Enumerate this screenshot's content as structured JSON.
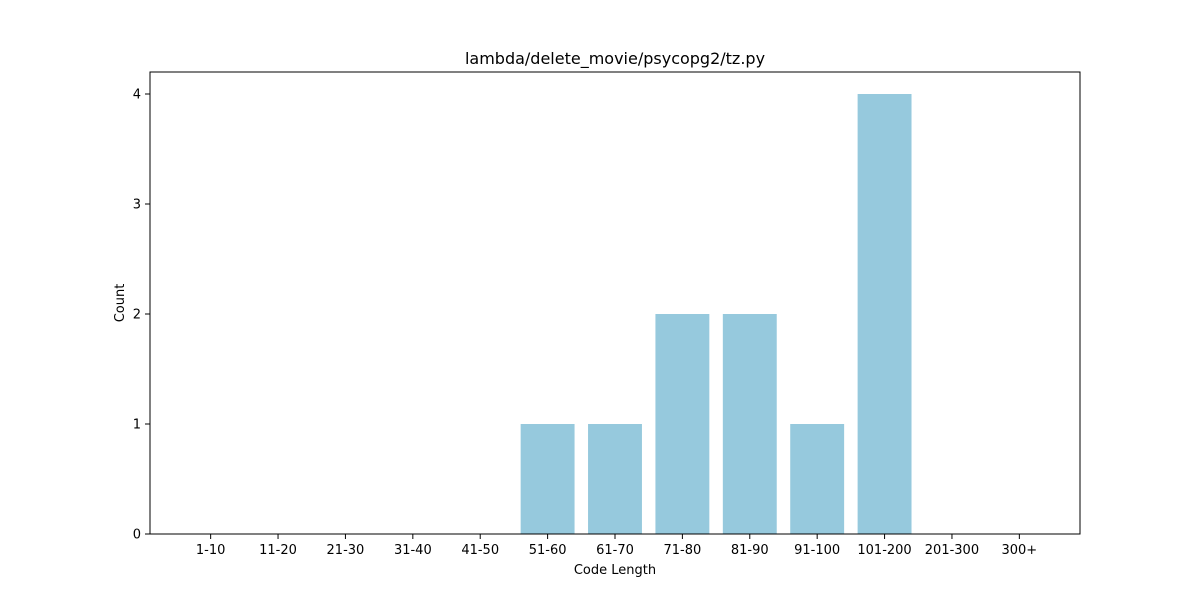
{
  "chart_data": {
    "type": "bar",
    "title": "lambda/delete_movie/psycopg2/tz.py",
    "xlabel": "Code Length",
    "ylabel": "Count",
    "categories": [
      "1-10",
      "11-20",
      "21-30",
      "31-40",
      "41-50",
      "51-60",
      "61-70",
      "71-80",
      "81-90",
      "91-100",
      "101-200",
      "201-300",
      "300+"
    ],
    "values": [
      0,
      0,
      0,
      0,
      0,
      1,
      1,
      2,
      2,
      1,
      4,
      0,
      0
    ],
    "ylim": [
      0,
      4.2
    ],
    "yticks": [
      0,
      1,
      2,
      3,
      4
    ],
    "bar_color": "#96c9dd",
    "grid": false,
    "legend": "none"
  }
}
